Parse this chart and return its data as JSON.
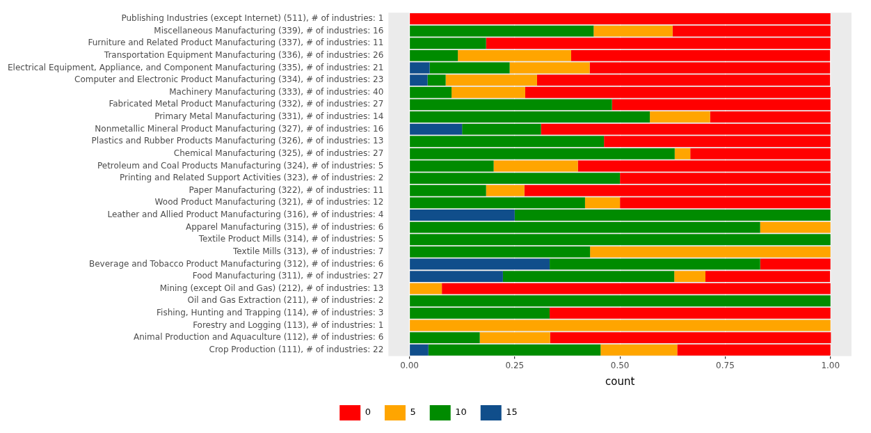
{
  "chart_data": {
    "type": "bar",
    "orientation": "horizontal",
    "stacked": true,
    "xlabel": "count",
    "legend": "bottom",
    "grid": "x",
    "categories": [
      "Publishing Industries (except Internet) (511), # of industries: 1",
      "Miscellaneous Manufacturing (339), # of industries: 16",
      "Furniture and Related Product Manufacturing (337), # of industries: 11",
      "Transportation Equipment Manufacturing (336), # of industries: 26",
      "Electrical Equipment, Appliance, and Component Manufacturing (335), # of industries: 21",
      "Computer and Electronic Product Manufacturing (334), # of industries: 23",
      "Machinery Manufacturing (333), # of industries: 40",
      "Fabricated Metal Product Manufacturing (332), # of industries: 27",
      "Primary Metal Manufacturing (331), # of industries: 14",
      "Nonmetallic Mineral Product Manufacturing (327), # of industries: 16",
      "Plastics and Rubber Products Manufacturing (326), # of industries: 13",
      "Chemical Manufacturing (325), # of industries: 27",
      "Petroleum and Coal Products Manufacturing (324), # of industries: 5",
      "Printing and Related Support Activities (323), # of industries: 2",
      "Paper Manufacturing (322), # of industries: 11",
      "Wood Product Manufacturing (321), # of industries: 12",
      "Leather and Allied Product Manufacturing (316), # of industries: 4",
      "Apparel Manufacturing (315), # of industries: 6",
      "Textile Product Mills (314), # of industries: 5",
      "Textile Mills (313), # of industries: 7",
      "Beverage and Tobacco Product Manufacturing (312), # of industries: 6",
      "Food Manufacturing (311), # of industries: 27",
      "Mining (except Oil and Gas) (212), # of industries: 13",
      "Oil and Gas Extraction (211), # of industries: 2",
      "Fishing, Hunting and Trapping (114), # of industries: 3",
      "Forestry and Logging (113), # of industries: 1",
      "Animal Production and Aquaculture (112), # of industries: 6",
      "Crop Production (111), # of industries: 22"
    ],
    "series": [
      {
        "name": "15",
        "color": "#104e8b",
        "values": [
          0,
          0,
          0,
          0,
          0.048,
          0.043,
          0,
          0,
          0,
          0.125,
          0,
          0,
          0,
          0,
          0,
          0,
          0.25,
          0,
          0,
          0,
          0.333,
          0.222,
          0,
          0,
          0,
          0,
          0,
          0.045
        ]
      },
      {
        "name": "10",
        "color": "#008b00",
        "values": [
          0,
          0.4375,
          0.182,
          0.115,
          0.19,
          0.043,
          0.1,
          0.481,
          0.571,
          0.1875,
          0.462,
          0.63,
          0.2,
          0.5,
          0.182,
          0.417,
          0.75,
          0.833,
          1,
          0.429,
          0.5,
          0.407,
          0,
          1,
          0.333,
          0,
          0.167,
          0.409
        ]
      },
      {
        "name": "5",
        "color": "#ffa500",
        "values": [
          0,
          0.1875,
          0,
          0.269,
          0.19,
          0.217,
          0.175,
          0,
          0.143,
          0,
          0,
          0.037,
          0.2,
          0,
          0.091,
          0.083,
          0,
          0.167,
          0,
          0.571,
          0,
          0.074,
          0.077,
          0,
          0,
          1,
          0.167,
          0.182
        ]
      },
      {
        "name": "0",
        "color": "#ff0000",
        "values": [
          1,
          0.375,
          0.818,
          0.615,
          0.571,
          0.696,
          0.725,
          0.519,
          0.286,
          0.6875,
          0.538,
          0.333,
          0.6,
          0.5,
          0.727,
          0.5,
          0,
          0,
          0,
          0,
          0.167,
          0.296,
          0.923,
          0,
          0.667,
          0,
          0.667,
          0.364
        ]
      }
    ],
    "xlim": [
      -0.05,
      1.05
    ],
    "xticks": [
      {
        "value": 0,
        "label": "0.00"
      },
      {
        "value": 0.25,
        "label": "0.25"
      },
      {
        "value": 0.5,
        "label": "0.50"
      },
      {
        "value": 0.75,
        "label": "0.75"
      },
      {
        "value": 1,
        "label": "1.00"
      }
    ]
  }
}
